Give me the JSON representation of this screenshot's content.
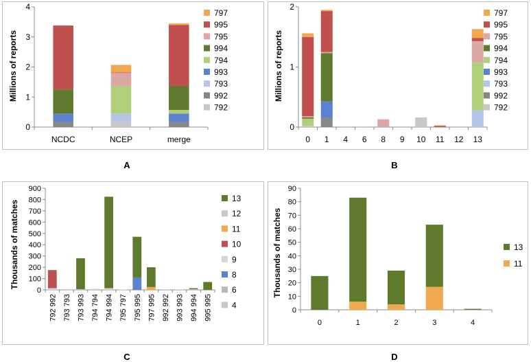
{
  "chart_data": [
    {
      "id": "A",
      "panel_label": "A",
      "type": "bar",
      "stacked": true,
      "title": "",
      "xlabel": "",
      "ylabel": "Millions of reports",
      "ylim": [
        0,
        4
      ],
      "yticks": [
        0,
        1,
        2,
        3,
        4
      ],
      "categories": [
        "NCDC",
        "NCEP",
        "merge"
      ],
      "series": [
        {
          "name": "792",
          "color": "#c8c8c8",
          "values": [
            0.0,
            0.17,
            0.0
          ]
        },
        {
          "name": "992",
          "color": "#878787",
          "values": [
            0.17,
            0.0,
            0.17
          ]
        },
        {
          "name": "793",
          "color": "#b3c6e7",
          "values": [
            0.0,
            0.28,
            0.0
          ]
        },
        {
          "name": "993",
          "color": "#5b82cc",
          "values": [
            0.28,
            0.0,
            0.28
          ]
        },
        {
          "name": "794",
          "color": "#b0cf7a",
          "values": [
            0.0,
            0.92,
            0.12
          ]
        },
        {
          "name": "994",
          "color": "#5e7a2c",
          "values": [
            0.8,
            0.0,
            0.8
          ]
        },
        {
          "name": "795",
          "color": "#dca8a6",
          "values": [
            0.0,
            0.43,
            0.0
          ]
        },
        {
          "name": "995",
          "color": "#c0504d",
          "values": [
            2.13,
            0.02,
            2.03
          ]
        },
        {
          "name": "797",
          "color": "#f0a94f",
          "values": [
            0.0,
            0.25,
            0.05
          ]
        }
      ],
      "legend": [
        "797",
        "995",
        "795",
        "994",
        "794",
        "993",
        "793",
        "992",
        "792"
      ]
    },
    {
      "id": "B",
      "panel_label": "B",
      "type": "bar",
      "stacked": true,
      "title": "",
      "xlabel": "",
      "ylabel": "Millions of reports",
      "ylim": [
        0,
        2
      ],
      "yticks": [
        0,
        1,
        2
      ],
      "categories": [
        "0",
        "1",
        "4",
        "6",
        "8",
        "9",
        "10",
        "11",
        "12",
        "13"
      ],
      "series": [
        {
          "name": "792",
          "color": "#c8c8c8",
          "values": [
            0.02,
            0.0,
            0.01,
            0.01,
            0.0,
            0.0,
            0.16,
            0.0,
            0.0,
            0.0
          ]
        },
        {
          "name": "992",
          "color": "#878787",
          "values": [
            0.0,
            0.16,
            0.0,
            0.0,
            0.0,
            0.0,
            0.0,
            0.0,
            0.0,
            0.0
          ]
        },
        {
          "name": "793",
          "color": "#b3c6e7",
          "values": [
            0.0,
            0.0,
            0.0,
            0.0,
            0.0,
            0.01,
            0.0,
            0.0,
            0.01,
            0.28
          ]
        },
        {
          "name": "993",
          "color": "#5b82cc",
          "values": [
            0.0,
            0.27,
            0.0,
            0.0,
            0.0,
            0.0,
            0.0,
            0.0,
            0.0,
            0.0
          ]
        },
        {
          "name": "794",
          "color": "#b0cf7a",
          "values": [
            0.12,
            0.0,
            0.0,
            0.0,
            0.0,
            0.0,
            0.0,
            0.0,
            0.0,
            0.8
          ]
        },
        {
          "name": "994",
          "color": "#5e7a2c",
          "values": [
            0.02,
            0.8,
            0.0,
            0.0,
            0.0,
            0.0,
            0.0,
            0.0,
            0.0,
            0.0
          ]
        },
        {
          "name": "795",
          "color": "#dca8a6",
          "values": [
            0.02,
            0.02,
            0.0,
            0.0,
            0.13,
            0.0,
            0.0,
            0.0,
            0.0,
            0.35
          ]
        },
        {
          "name": "995",
          "color": "#c0504d",
          "values": [
            1.32,
            0.68,
            0.0,
            0.0,
            0.0,
            0.0,
            0.0,
            0.02,
            0.0,
            0.05
          ]
        },
        {
          "name": "797",
          "color": "#f0a94f",
          "values": [
            0.06,
            0.02,
            0.0,
            0.0,
            0.0,
            0.0,
            0.0,
            0.01,
            0.0,
            0.15
          ]
        }
      ],
      "legend": [
        "797",
        "995",
        "795",
        "994",
        "794",
        "993",
        "793",
        "992",
        "792"
      ]
    },
    {
      "id": "C",
      "panel_label": "C",
      "type": "bar",
      "stacked": true,
      "title": "",
      "xlabel": "",
      "ylabel": "Thousands of matches",
      "ylim": [
        0,
        900
      ],
      "yticks": [
        0,
        100,
        200,
        300,
        400,
        500,
        600,
        700,
        800,
        900
      ],
      "categories": [
        "792 992",
        "793 793",
        "793 993",
        "794 794",
        "794 994",
        "795 797",
        "795 995",
        "797 995",
        "992 992",
        "993 993",
        "994 994",
        "995 995"
      ],
      "series": [
        {
          "name": "4",
          "color": "#c8c8c8",
          "values": [
            0,
            0,
            0,
            0,
            0,
            0,
            0,
            0,
            0,
            0,
            0,
            0
          ]
        },
        {
          "name": "6",
          "color": "#b9b9b9",
          "values": [
            0,
            0,
            0,
            0,
            0,
            0,
            0,
            0,
            0,
            0,
            0,
            0
          ]
        },
        {
          "name": "8",
          "color": "#5b82cc",
          "values": [
            0,
            0,
            0,
            0,
            0,
            0,
            110,
            0,
            0,
            0,
            0,
            0
          ]
        },
        {
          "name": "9",
          "color": "#d4d4d4",
          "values": [
            15,
            8,
            5,
            10,
            15,
            3,
            0,
            0,
            5,
            5,
            5,
            0
          ]
        },
        {
          "name": "10",
          "color": "#c0504d",
          "values": [
            160,
            0,
            0,
            0,
            0,
            0,
            0,
            0,
            0,
            0,
            0,
            0
          ]
        },
        {
          "name": "11",
          "color": "#f0a94f",
          "values": [
            0,
            0,
            0,
            0,
            0,
            0,
            0,
            25,
            0,
            0,
            0,
            0
          ]
        },
        {
          "name": "12",
          "color": "#c8c8c8",
          "values": [
            0,
            0,
            0,
            0,
            0,
            0,
            0,
            0,
            0,
            0,
            0,
            0
          ]
        },
        {
          "name": "13",
          "color": "#5e7a2c",
          "values": [
            0,
            0,
            275,
            0,
            810,
            0,
            360,
            175,
            0,
            0,
            10,
            70
          ]
        }
      ],
      "legend": [
        "13",
        "12",
        "11",
        "10",
        "9",
        "8",
        "6",
        "4"
      ]
    },
    {
      "id": "D",
      "panel_label": "D",
      "type": "bar",
      "stacked": true,
      "title": "",
      "xlabel": "",
      "ylabel": "Thousands of matches",
      "ylim": [
        0,
        90
      ],
      "yticks": [
        0,
        10,
        20,
        30,
        40,
        50,
        60,
        70,
        80,
        90
      ],
      "categories": [
        "0",
        "1",
        "2",
        "3",
        "4"
      ],
      "series": [
        {
          "name": "11",
          "color": "#f0a94f",
          "values": [
            0,
            6,
            4,
            17,
            0
          ]
        },
        {
          "name": "13",
          "color": "#5e7a2c",
          "values": [
            25,
            77,
            25,
            46,
            0.7
          ]
        }
      ],
      "legend": [
        "13",
        "11"
      ]
    }
  ]
}
